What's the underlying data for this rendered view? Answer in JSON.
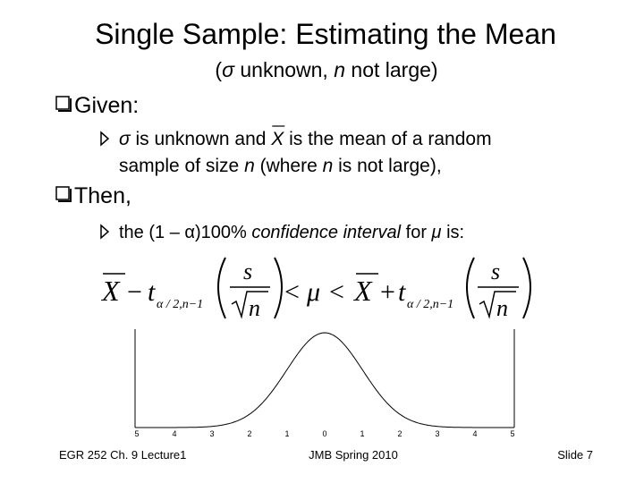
{
  "title": "Single Sample: Estimating the Mean",
  "subtitle": [
    "(",
    "σ",
    " unknown, ",
    "n",
    " not large)"
  ],
  "sections": [
    {
      "heading": "Given:",
      "item": [
        [
          "σ",
          " is unknown and ",
          "X",
          " is the mean of a random"
        ],
        [
          "sample of size ",
          "n",
          " (where ",
          "n",
          " is not large),"
        ]
      ]
    },
    {
      "heading": "Then,",
      "item": [
        [
          "the (1 – α)100% ",
          "confidence interval",
          " for ",
          "μ",
          " is:"
        ]
      ]
    }
  ],
  "formula": {
    "left_mean": "X",
    "minus": "−",
    "left_t": "t",
    "left_sub": "α / 2,n−1",
    "left_num": "s",
    "left_den": "n",
    "lt1": "<",
    "mu": "μ",
    "lt2": "<",
    "right_mean": "X",
    "plus": "+",
    "right_t": "t",
    "right_sub": "α / 2,n−1",
    "right_num": "s",
    "right_den": "n"
  },
  "graph": {
    "tick_labels": [
      "5",
      "4",
      "3",
      "2",
      "1",
      "0",
      "1",
      "2",
      "3",
      "4",
      "5"
    ]
  },
  "footer": {
    "left": "EGR 252  Ch. 9  Lecture1",
    "center": "JMB Spring 2010",
    "right": "Slide  7"
  }
}
